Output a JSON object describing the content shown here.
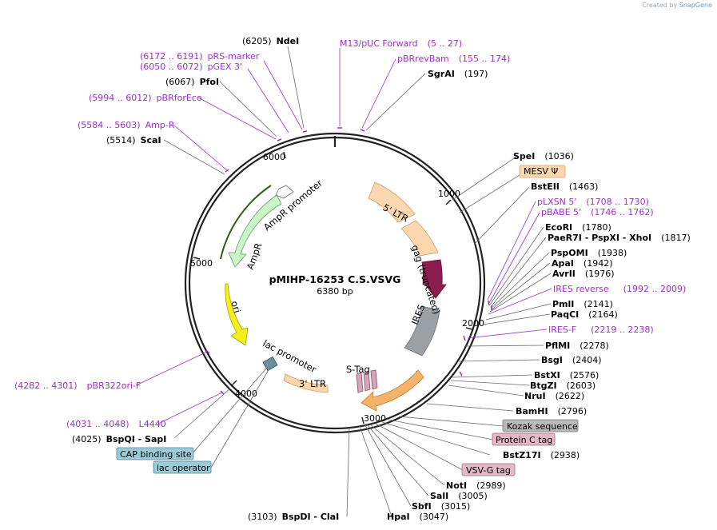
{
  "branding": {
    "prefix": "Created by",
    "product": "SnapGene"
  },
  "plasmid": {
    "name": "pMIHP-16253 C.S.VSVG",
    "length": "6380 bp"
  },
  "ticks": [
    "1000",
    "2000",
    "3000",
    "4000",
    "5000",
    "6000"
  ],
  "features": [
    {
      "label": "5' LTR",
      "color": "#fbd7b0"
    },
    {
      "label": "gag (truncated)",
      "color": "#8b1e4f"
    },
    {
      "label": "IRES",
      "color": "#9aa0a6"
    },
    {
      "label": "S-Tag",
      "color": "#d4a4b8"
    },
    {
      "label": "3' LTR",
      "color": "#fbd7b0"
    },
    {
      "label": "lac promoter",
      "color": "#6d8f9b"
    },
    {
      "label": "ori",
      "color": "#f5ef1c"
    },
    {
      "label": "AmpR",
      "color": "#c9f5c8"
    },
    {
      "label": "AmpR promoter",
      "color": "#ffffff"
    },
    {
      "label": "VSV-G",
      "color": "#f4b26a"
    }
  ],
  "labels": [
    {
      "pos": "(6205)",
      "name": "NdeI",
      "kind": "enzyme"
    },
    {
      "name": "M13/pUC Forward",
      "pos": "(5 .. 27)",
      "kind": "primer"
    },
    {
      "pos": "(6172 .. 6191)",
      "name": "pRS-marker",
      "kind": "primer"
    },
    {
      "name": "pBRrevBam",
      "pos": "(155 .. 174)",
      "kind": "primer"
    },
    {
      "pos": "(6050 .. 6072)",
      "name": "pGEX 3'",
      "kind": "primer"
    },
    {
      "name": "SgrAI",
      "pos": "(197)",
      "kind": "enzyme"
    },
    {
      "pos": "(6067)",
      "name": "PfoI",
      "kind": "enzyme"
    },
    {
      "pos": "(5994 .. 6012)",
      "name": "pBRforEco",
      "kind": "primer"
    },
    {
      "pos": "(5584 .. 5603)",
      "name": "Amp-R",
      "kind": "primer"
    },
    {
      "pos": "(5514)",
      "name": "ScaI",
      "kind": "enzyme"
    },
    {
      "name": "SpeI",
      "pos": "(1036)",
      "kind": "enzyme"
    },
    {
      "name": "MESV Ψ",
      "kind": "box",
      "color": "#fbd7b0"
    },
    {
      "name": "BstEII",
      "pos": "(1463)",
      "kind": "enzyme"
    },
    {
      "name": "pLXSN 5'",
      "pos": "(1708 .. 1730)",
      "kind": "primer"
    },
    {
      "name": "pBABE 5'",
      "pos": "(1746 .. 1762)",
      "kind": "primer"
    },
    {
      "name": "EcoRI",
      "pos": "(1780)",
      "kind": "enzyme"
    },
    {
      "name": "PaeR7I - PspXI - XhoI",
      "pos": "(1817)",
      "kind": "enzyme"
    },
    {
      "name": "PspOMI",
      "pos": "(1938)",
      "kind": "enzyme"
    },
    {
      "name": "ApaI",
      "pos": "(1942)",
      "kind": "enzyme"
    },
    {
      "name": "AvrII",
      "pos": "(1976)",
      "kind": "enzyme"
    },
    {
      "name": "IRES reverse",
      "pos": "(1992 .. 2009)",
      "kind": "primer"
    },
    {
      "name": "PmlI",
      "pos": "(2141)",
      "kind": "enzyme"
    },
    {
      "name": "PaqCI",
      "pos": "(2164)",
      "kind": "enzyme"
    },
    {
      "name": "IRES-F",
      "pos": "(2219 .. 2238)",
      "kind": "primer"
    },
    {
      "name": "PflMI",
      "pos": "(2278)",
      "kind": "enzyme"
    },
    {
      "name": "BsgI",
      "pos": "(2404)",
      "kind": "enzyme"
    },
    {
      "name": "BstXI",
      "pos": "(2576)",
      "kind": "enzyme"
    },
    {
      "name": "BtgZI",
      "pos": "(2603)",
      "kind": "enzyme"
    },
    {
      "name": "NruI",
      "pos": "(2622)",
      "kind": "enzyme"
    },
    {
      "name": "BamHI",
      "pos": "(2796)",
      "kind": "enzyme"
    },
    {
      "name": "Kozak sequence",
      "kind": "box",
      "color": "#b8b8b8"
    },
    {
      "name": "Protein C tag",
      "kind": "box",
      "color": "#e3b9c8"
    },
    {
      "name": "BstZ17I",
      "pos": "(2938)",
      "kind": "enzyme"
    },
    {
      "name": "VSV-G tag",
      "kind": "box",
      "color": "#e3b9c8"
    },
    {
      "name": "NotI",
      "pos": "(2989)",
      "kind": "enzyme"
    },
    {
      "name": "SalI",
      "pos": "(3005)",
      "kind": "enzyme"
    },
    {
      "name": "SbfI",
      "pos": "(3015)",
      "kind": "enzyme"
    },
    {
      "name": "HpaI",
      "pos": "(3047)",
      "kind": "enzyme"
    },
    {
      "pos": "(3103)",
      "name": "BspDI - ClaI",
      "kind": "enzyme"
    },
    {
      "pos": "(4282 .. 4301)",
      "name": "pBR322ori-F",
      "kind": "primer"
    },
    {
      "pos": "(4031 .. 4048)",
      "name": "L4440",
      "kind": "primer"
    },
    {
      "pos": "(4025)",
      "name": "BspQI - SapI",
      "kind": "enzyme"
    },
    {
      "name": "CAP binding site",
      "kind": "box",
      "color": "#9ccbd8"
    },
    {
      "name": "lac operator",
      "kind": "box",
      "color": "#9ccbd8"
    }
  ]
}
